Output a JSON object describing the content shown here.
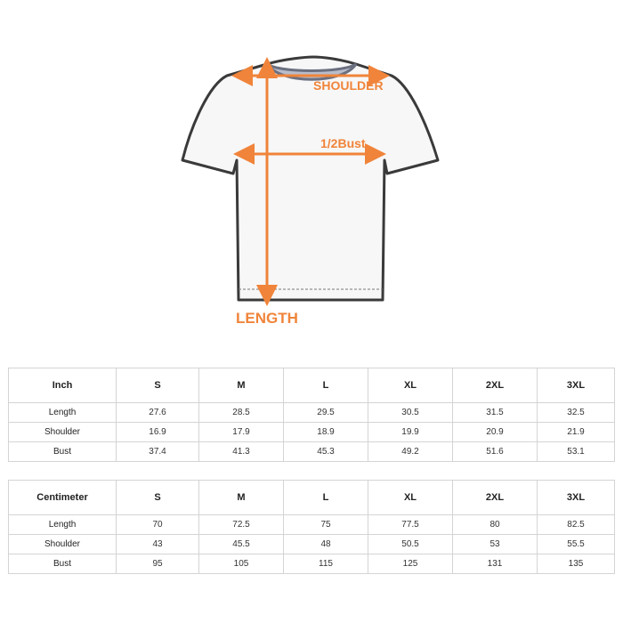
{
  "diagram": {
    "labels": {
      "shoulder": "SHOULDER",
      "bust": "1/2Bust",
      "length": "LENGTH"
    },
    "colors": {
      "arrow": "#f0843a",
      "outline": "#3a3a3a",
      "collar": "#8a8fa0"
    }
  },
  "sizes": [
    "S",
    "M",
    "L",
    "XL",
    "2XL",
    "3XL"
  ],
  "tables": [
    {
      "unit": "Inch",
      "rows": [
        {
          "label": "Length",
          "values": [
            "27.6",
            "28.5",
            "29.5",
            "30.5",
            "31.5",
            "32.5"
          ]
        },
        {
          "label": "Shoulder",
          "values": [
            "16.9",
            "17.9",
            "18.9",
            "19.9",
            "20.9",
            "21.9"
          ]
        },
        {
          "label": "Bust",
          "values": [
            "37.4",
            "41.3",
            "45.3",
            "49.2",
            "51.6",
            "53.1"
          ]
        }
      ]
    },
    {
      "unit": "Centimeter",
      "rows": [
        {
          "label": "Length",
          "values": [
            "70",
            "72.5",
            "75",
            "77.5",
            "80",
            "82.5"
          ]
        },
        {
          "label": "Shoulder",
          "values": [
            "43",
            "45.5",
            "48",
            "50.5",
            "53",
            "55.5"
          ]
        },
        {
          "label": "Bust",
          "values": [
            "95",
            "105",
            "115",
            "125",
            "131",
            "135"
          ]
        }
      ]
    }
  ]
}
